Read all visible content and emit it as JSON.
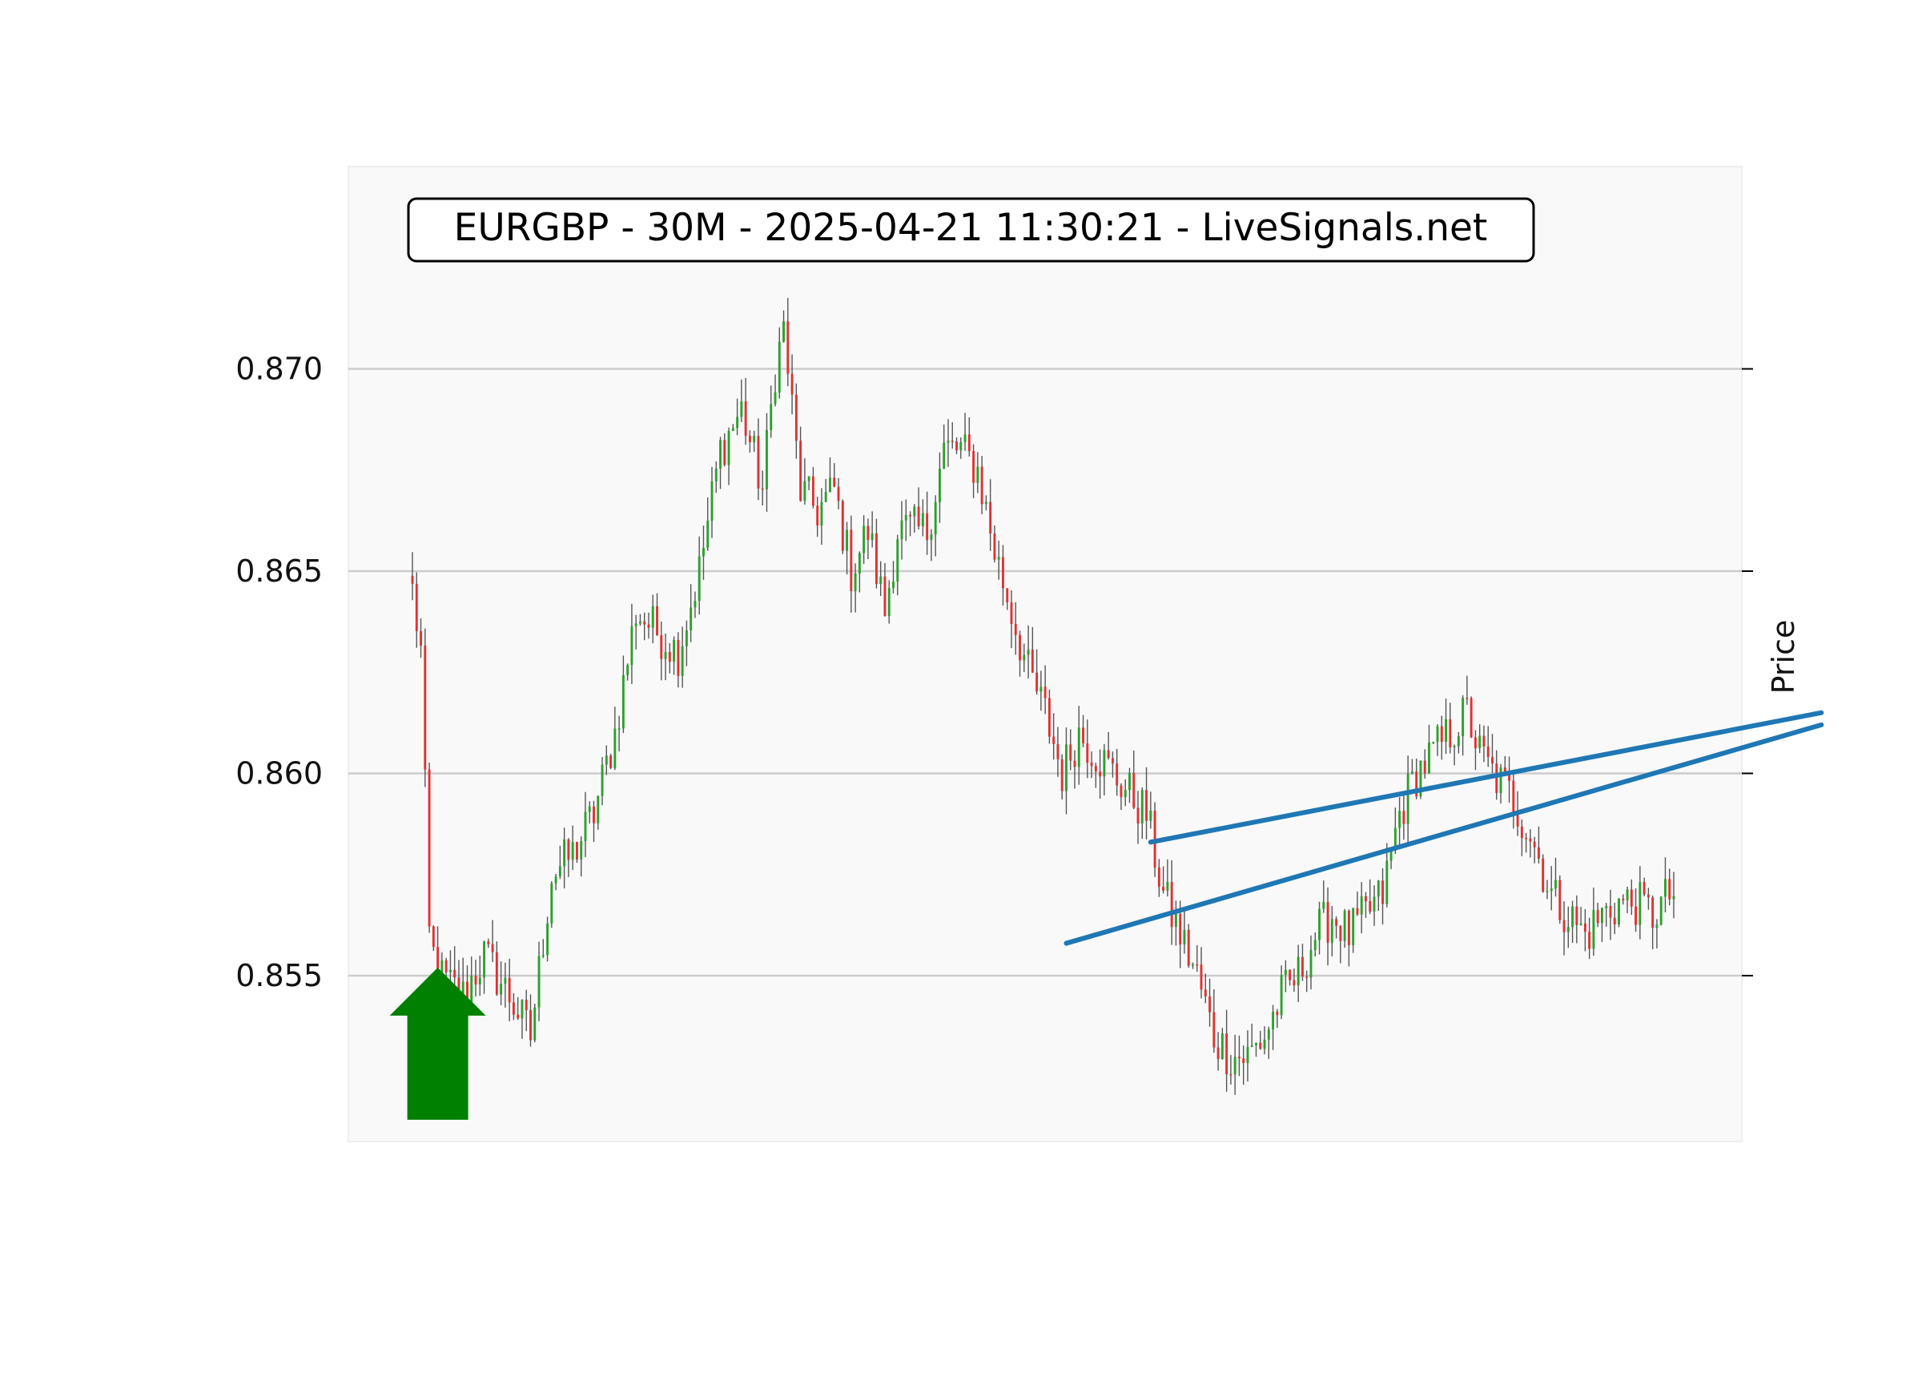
{
  "chart_data": {
    "type": "candlestick",
    "title": "EURGBP - 30M - 2025-04-21 11:30:21 - LiveSignals.net",
    "ylabel": "Price",
    "xlabel": "",
    "ylim": [
      0.8509,
      0.875
    ],
    "yticks": [
      0.855,
      0.86,
      0.865,
      0.87
    ],
    "ytick_labels": [
      "0.855",
      "0.860",
      "0.865",
      "0.870"
    ],
    "grid": "horizontal",
    "colors": {
      "up": "#2ca02c",
      "down": "#e03131",
      "trendline": "#1f77b4",
      "signal_arrow": "#008000",
      "plot_bg": "#f9f9f9",
      "grid": "#cccccc"
    },
    "candle_count": 300,
    "close_path": [
      [
        0,
        0.8645
      ],
      [
        2,
        0.863
      ],
      [
        4,
        0.856
      ],
      [
        6,
        0.855
      ],
      [
        12,
        0.8545
      ],
      [
        17,
        0.8555
      ],
      [
        23,
        0.8545
      ],
      [
        28,
        0.8535
      ],
      [
        33,
        0.8575
      ],
      [
        38,
        0.858
      ],
      [
        43,
        0.859
      ],
      [
        48,
        0.861
      ],
      [
        53,
        0.864
      ],
      [
        58,
        0.8635
      ],
      [
        63,
        0.863
      ],
      [
        68,
        0.865
      ],
      [
        73,
        0.868
      ],
      [
        78,
        0.869
      ],
      [
        83,
        0.867
      ],
      [
        86,
        0.87
      ],
      [
        88,
        0.871
      ],
      [
        92,
        0.867
      ],
      [
        96,
        0.8665
      ],
      [
        100,
        0.867
      ],
      [
        104,
        0.865
      ],
      [
        108,
        0.866
      ],
      [
        112,
        0.864
      ],
      [
        115,
        0.866
      ],
      [
        118,
        0.866
      ],
      [
        122,
        0.866
      ],
      [
        126,
        0.868
      ],
      [
        130,
        0.868
      ],
      [
        134,
        0.8675
      ],
      [
        138,
        0.8655
      ],
      [
        142,
        0.864
      ],
      [
        146,
        0.8625
      ],
      [
        150,
        0.8615
      ],
      [
        154,
        0.86
      ],
      [
        158,
        0.861
      ],
      [
        162,
        0.8605
      ],
      [
        166,
        0.86
      ],
      [
        170,
        0.8595
      ],
      [
        174,
        0.859
      ],
      [
        178,
        0.857
      ],
      [
        182,
        0.856
      ],
      [
        186,
        0.855
      ],
      [
        190,
        0.8535
      ],
      [
        194,
        0.853
      ],
      [
        198,
        0.853
      ],
      [
        202,
        0.8535
      ],
      [
        206,
        0.8545
      ],
      [
        210,
        0.855
      ],
      [
        214,
        0.856
      ],
      [
        218,
        0.8565
      ],
      [
        222,
        0.856
      ],
      [
        226,
        0.8565
      ],
      [
        230,
        0.857
      ],
      [
        234,
        0.859
      ],
      [
        238,
        0.86
      ],
      [
        242,
        0.8605
      ],
      [
        246,
        0.861
      ],
      [
        250,
        0.8615
      ],
      [
        253,
        0.8605
      ],
      [
        256,
        0.86
      ],
      [
        260,
        0.8595
      ],
      [
        265,
        0.8585
      ],
      [
        270,
        0.857
      ],
      [
        274,
        0.8565
      ],
      [
        278,
        0.856
      ],
      [
        282,
        0.8565
      ],
      [
        286,
        0.8568
      ],
      [
        290,
        0.8568
      ],
      [
        294,
        0.8565
      ],
      [
        298,
        0.857
      ],
      [
        300,
        0.857
      ],
      [
        304,
        0.8575
      ],
      [
        308,
        0.8578
      ],
      [
        312,
        0.8572
      ],
      [
        316,
        0.8585
      ],
      [
        320,
        0.8598
      ],
      [
        324,
        0.8605
      ],
      [
        328,
        0.8608
      ],
      [
        332,
        0.8612
      ],
      [
        334,
        0.8616
      ]
    ],
    "annotations": [
      {
        "type": "trendline",
        "from": [
          155,
          0.8558
        ],
        "to": [
          334,
          0.8612
        ]
      },
      {
        "type": "trendline",
        "from": [
          175,
          0.8583
        ],
        "to": [
          334,
          0.8615
        ]
      },
      {
        "type": "arrow",
        "direction": "up",
        "at": [
          6,
          0.8552
        ]
      }
    ]
  }
}
